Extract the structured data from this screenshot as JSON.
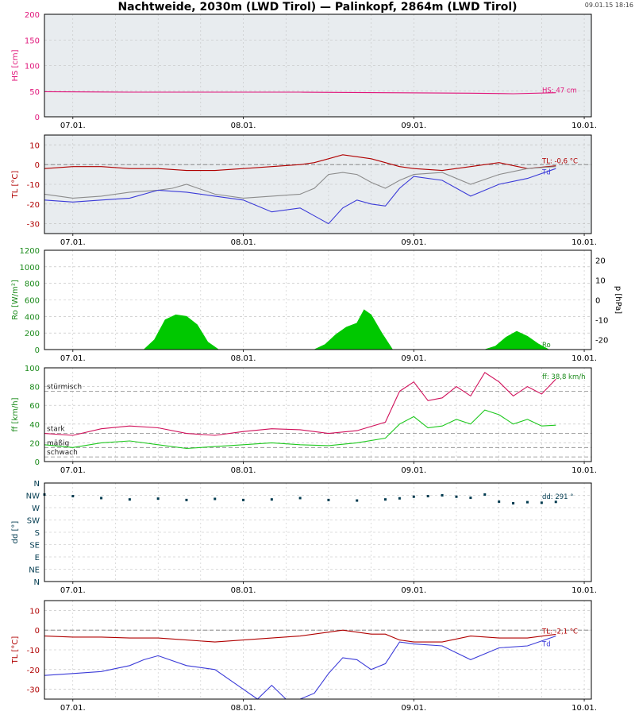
{
  "header": {
    "title": "Nachtweide, 2030m (LWD Tirol) — Palinkopf, 2864m (LWD Tirol)",
    "timestamp": "09.01.15 18:16"
  },
  "colors": {
    "frame": "#000000",
    "grid": "#bbbbbb",
    "panel_bg": "#e8ecef",
    "hs": "#e0157a",
    "tl": "#b00000",
    "td": "#3b3bd8",
    "grey_series": "#8c8c8c",
    "ro": "#00c800",
    "ff": "#1ec81e",
    "gust": "#d0105a",
    "dd": "#003a4f"
  },
  "x_tick_labels": [
    "07.01.",
    "08.01.",
    "09.01.",
    "10.01."
  ],
  "chart_data": [
    {
      "id": "hs",
      "type": "line",
      "ylabel": "HS [cm]",
      "ylim": [
        0,
        200
      ],
      "yticks": [
        0,
        50,
        100,
        150,
        200
      ],
      "xlim": [
        0,
        77
      ],
      "grid": true,
      "series": [
        {
          "color": "#e0157a",
          "x": [
            0,
            12,
            24,
            36,
            48,
            60,
            66,
            72
          ],
          "y": [
            49,
            48,
            48,
            48,
            47,
            46,
            45,
            47
          ]
        }
      ],
      "annotations": [
        "HS: 47 cm"
      ]
    },
    {
      "id": "tl-top",
      "type": "line",
      "ylabel": "TL [°C]",
      "ylim": [
        -35,
        15
      ],
      "yticks": [
        -30,
        -20,
        -10,
        0,
        10
      ],
      "xlim": [
        0,
        77
      ],
      "grid": true,
      "series": [
        {
          "color": "#b00000",
          "x": [
            0,
            4,
            8,
            12,
            16,
            20,
            24,
            28,
            32,
            36,
            38,
            40,
            42,
            44,
            46,
            48,
            50,
            52,
            56,
            60,
            64,
            68,
            72
          ],
          "y": [
            -2,
            -1,
            -1,
            -2,
            -2,
            -3,
            -3,
            -2,
            -1,
            0,
            1,
            3,
            5,
            4,
            3,
            1,
            -1,
            -2,
            -3,
            -1,
            1,
            -2,
            -0.6
          ]
        },
        {
          "color": "#8c8c8c",
          "x": [
            0,
            4,
            8,
            12,
            16,
            18,
            20,
            24,
            28,
            32,
            36,
            38,
            40,
            42,
            44,
            46,
            48,
            50,
            52,
            56,
            60,
            64,
            68,
            72
          ],
          "y": [
            -15,
            -17,
            -16,
            -14,
            -13,
            -12,
            -10,
            -15,
            -17,
            -16,
            -15,
            -12,
            -5,
            -4,
            -5,
            -9,
            -12,
            -8,
            -5,
            -4,
            -10,
            -5,
            -2,
            -1
          ]
        },
        {
          "color": "#3b3bd8",
          "x": [
            0,
            4,
            8,
            12,
            16,
            20,
            24,
            28,
            32,
            36,
            38,
            40,
            42,
            44,
            46,
            48,
            50,
            52,
            56,
            60,
            64,
            68,
            72
          ],
          "y": [
            -18,
            -19,
            -18,
            -17,
            -13,
            -14,
            -16,
            -18,
            -24,
            -22,
            -26,
            -30,
            -22,
            -18,
            -20,
            -21,
            -12,
            -6,
            -8,
            -16,
            -10,
            -7,
            -2
          ]
        }
      ],
      "annotations": [
        "TL: -0,6 °C",
        "Td"
      ]
    },
    {
      "id": "ro",
      "type": "area",
      "ylabel": "Ro [W/m²]",
      "ylabel_right": "p [hPa]",
      "ylim": [
        0,
        1200
      ],
      "yticks": [
        0,
        200,
        400,
        600,
        800,
        1000,
        1200
      ],
      "ylim_right": [
        -25,
        25
      ],
      "yticks_right": [
        -20,
        -10,
        0,
        10,
        20
      ],
      "xlim": [
        0,
        77
      ],
      "grid": true,
      "series": [
        {
          "color": "#00c800",
          "x": [
            0,
            14,
            15.5,
            17,
            18.5,
            20,
            21.5,
            23,
            24.5,
            38,
            39.5,
            41,
            42.5,
            44,
            45,
            46,
            47.5,
            49,
            62,
            63.5,
            65,
            66.5,
            68,
            69.5,
            71,
            77
          ],
          "y": [
            0,
            0,
            120,
            360,
            420,
            400,
            300,
            90,
            0,
            0,
            60,
            180,
            270,
            320,
            480,
            420,
            200,
            0,
            0,
            40,
            150,
            220,
            160,
            70,
            0,
            0
          ]
        }
      ],
      "annotations": [
        "Ro"
      ]
    },
    {
      "id": "ff",
      "type": "line",
      "ylabel": "ff [km/h]",
      "ylim": [
        0,
        100
      ],
      "yticks": [
        0,
        20,
        40,
        60,
        80,
        100
      ],
      "xlim": [
        0,
        77
      ],
      "grid": true,
      "reference_lines": [
        {
          "label": "stürmisch",
          "y": 75
        },
        {
          "label": "stark",
          "y": 30
        },
        {
          "label": "mäßig",
          "y": 15
        },
        {
          "label": "schwach",
          "y": 5
        }
      ],
      "series": [
        {
          "color": "#d0105a",
          "x": [
            0,
            4,
            8,
            12,
            16,
            20,
            24,
            28,
            32,
            36,
            40,
            44,
            48,
            50,
            52,
            54,
            56,
            58,
            60,
            62,
            64,
            66,
            68,
            70,
            72
          ],
          "y": [
            30,
            28,
            35,
            38,
            36,
            30,
            28,
            32,
            35,
            34,
            30,
            33,
            42,
            75,
            85,
            65,
            68,
            80,
            70,
            95,
            85,
            70,
            80,
            72,
            88
          ]
        },
        {
          "color": "#1ec81e",
          "x": [
            0,
            4,
            8,
            12,
            16,
            20,
            24,
            28,
            32,
            36,
            40,
            44,
            48,
            50,
            52,
            54,
            56,
            58,
            60,
            62,
            64,
            66,
            68,
            70,
            72
          ],
          "y": [
            18,
            15,
            20,
            22,
            18,
            14,
            16,
            18,
            20,
            18,
            17,
            20,
            25,
            40,
            48,
            36,
            38,
            45,
            40,
            55,
            50,
            40,
            45,
            38,
            38.8
          ]
        }
      ],
      "annotations": [
        "ff: 38,8 km/h"
      ]
    },
    {
      "id": "dd",
      "type": "scatter",
      "ylabel": "dd [°]",
      "ylim": [
        0,
        360
      ],
      "yticks": [
        0,
        45,
        90,
        135,
        180,
        225,
        270,
        315,
        360
      ],
      "ytick_labels": [
        "N",
        "NE",
        "E",
        "SE",
        "S",
        "SW",
        "W",
        "NW",
        "N"
      ],
      "xlim": [
        0,
        77
      ],
      "grid": true,
      "series": [
        {
          "color": "#003a4f",
          "x": [
            0,
            4,
            8,
            12,
            16,
            20,
            24,
            28,
            32,
            36,
            40,
            44,
            48,
            50,
            52,
            54,
            56,
            58,
            60,
            62,
            64,
            66,
            68,
            70,
            72
          ],
          "y": [
            318,
            312,
            305,
            300,
            303,
            298,
            302,
            298,
            300,
            305,
            298,
            296,
            300,
            304,
            310,
            312,
            315,
            310,
            306,
            318,
            292,
            286,
            290,
            288,
            291
          ]
        }
      ],
      "annotations": [
        "dd: 291 °"
      ]
    },
    {
      "id": "tl-bottom",
      "type": "line",
      "ylabel": "TL [°C]",
      "ylim": [
        -35,
        15
      ],
      "yticks": [
        -30,
        -20,
        -10,
        0,
        10
      ],
      "xlim": [
        0,
        77
      ],
      "grid": true,
      "series": [
        {
          "color": "#b00000",
          "x": [
            0,
            4,
            8,
            12,
            16,
            20,
            24,
            28,
            32,
            36,
            40,
            42,
            44,
            46,
            48,
            50,
            52,
            56,
            60,
            64,
            68,
            72
          ],
          "y": [
            -3,
            -3.5,
            -3.5,
            -4,
            -4,
            -5,
            -6,
            -5,
            -4,
            -3,
            -1,
            0,
            -1,
            -2,
            -2,
            -5,
            -6,
            -6,
            -3,
            -4,
            -4,
            -2.1
          ]
        },
        {
          "color": "#3b3bd8",
          "x": [
            0,
            4,
            8,
            12,
            14,
            16,
            20,
            24,
            28,
            30,
            32,
            34,
            36,
            38,
            40,
            42,
            44,
            46,
            48,
            50,
            52,
            56,
            60,
            64,
            68,
            72
          ],
          "y": [
            -23,
            -22,
            -21,
            -18,
            -15,
            -13,
            -18,
            -20,
            -30,
            -35,
            -28,
            -35,
            -35,
            -32,
            -22,
            -14,
            -15,
            -20,
            -17,
            -6,
            -7,
            -8,
            -15,
            -9,
            -8,
            -3
          ]
        }
      ],
      "annotations": [
        "TL: -2,1 °C",
        "Td"
      ]
    }
  ]
}
